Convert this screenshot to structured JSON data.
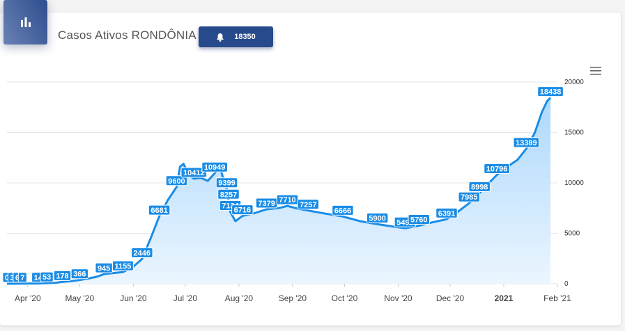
{
  "header": {
    "title": "Casos Ativos RONDÔNIA",
    "badge_value": "18350",
    "icon": "bar-chart-icon",
    "badge_icon": "bell-icon",
    "menu_icon": "hamburger-menu-icon"
  },
  "colors": {
    "line": "#1a8ce6",
    "area_top": "#a9d6fb",
    "area_bottom": "#eaf5ff",
    "label_bg": "#1a8ce6",
    "badge": "#274a8c"
  },
  "chart_data": {
    "type": "area",
    "title": "Casos Ativos RONDÔNIA",
    "xlabel": "",
    "ylabel": "",
    "x_start": "2020-03-20",
    "x_end": "2021-02-01",
    "ylim": [
      0,
      20000
    ],
    "yticks": [
      0,
      5000,
      10000,
      15000,
      20000
    ],
    "xtick_labels": [
      {
        "date": "2020-04-01",
        "label": "Apr '20",
        "bold": false
      },
      {
        "date": "2020-05-01",
        "label": "May '20",
        "bold": false
      },
      {
        "date": "2020-06-01",
        "label": "Jun '20",
        "bold": false
      },
      {
        "date": "2020-07-01",
        "label": "Jul '20",
        "bold": false
      },
      {
        "date": "2020-08-01",
        "label": "Aug '20",
        "bold": false
      },
      {
        "date": "2020-09-01",
        "label": "Sep '20",
        "bold": false
      },
      {
        "date": "2020-10-01",
        "label": "Oct '20",
        "bold": false
      },
      {
        "date": "2020-11-01",
        "label": "Nov '20",
        "bold": false
      },
      {
        "date": "2020-12-01",
        "label": "Dec '20",
        "bold": false
      },
      {
        "date": "2021-01-01",
        "label": "2021",
        "bold": true
      },
      {
        "date": "2021-02-01",
        "label": "Feb '21",
        "bold": false
      }
    ],
    "grid": true,
    "legend": "none",
    "series": [
      {
        "points": [
          [
            "2020-03-20",
            0
          ],
          [
            "2020-03-23",
            3
          ],
          [
            "2020-03-26",
            6
          ],
          [
            "2020-03-29",
            7
          ],
          [
            "2020-04-02",
            14
          ],
          [
            "2020-04-07",
            14
          ],
          [
            "2020-04-12",
            53
          ],
          [
            "2020-04-17",
            100
          ],
          [
            "2020-04-21",
            178
          ],
          [
            "2020-04-26",
            250
          ],
          [
            "2020-05-01",
            366
          ],
          [
            "2020-05-06",
            520
          ],
          [
            "2020-05-11",
            700
          ],
          [
            "2020-05-15",
            945
          ],
          [
            "2020-05-20",
            1050
          ],
          [
            "2020-05-26",
            1155
          ],
          [
            "2020-06-01",
            1700
          ],
          [
            "2020-06-06",
            2446
          ],
          [
            "2020-06-11",
            4500
          ],
          [
            "2020-06-16",
            6681
          ],
          [
            "2020-06-21",
            8300
          ],
          [
            "2020-06-26",
            9600
          ],
          [
            "2020-06-28",
            11600
          ],
          [
            "2020-06-30",
            11900
          ],
          [
            "2020-07-03",
            10800
          ],
          [
            "2020-07-06",
            10412
          ],
          [
            "2020-07-10",
            10500
          ],
          [
            "2020-07-14",
            10200
          ],
          [
            "2020-07-18",
            10949
          ],
          [
            "2020-07-21",
            11600
          ],
          [
            "2020-07-23",
            10400
          ],
          [
            "2020-07-25",
            9399
          ],
          [
            "2020-07-26",
            8257
          ],
          [
            "2020-07-27",
            7134
          ],
          [
            "2020-07-30",
            6200
          ],
          [
            "2020-08-03",
            6716
          ],
          [
            "2020-08-10",
            7000
          ],
          [
            "2020-08-17",
            7379
          ],
          [
            "2020-08-24",
            7500
          ],
          [
            "2020-08-29",
            7710
          ],
          [
            "2020-09-04",
            7450
          ],
          [
            "2020-09-10",
            7257
          ],
          [
            "2020-09-20",
            6950
          ],
          [
            "2020-09-30",
            6666
          ],
          [
            "2020-10-10",
            6200
          ],
          [
            "2020-10-20",
            5900
          ],
          [
            "2020-10-30",
            5650
          ],
          [
            "2020-11-05",
            5497
          ],
          [
            "2020-11-13",
            5760
          ],
          [
            "2020-11-21",
            6100
          ],
          [
            "2020-11-29",
            6391
          ],
          [
            "2020-12-06",
            7200
          ],
          [
            "2020-12-12",
            7985
          ],
          [
            "2020-12-18",
            8998
          ],
          [
            "2020-12-23",
            9900
          ],
          [
            "2020-12-28",
            10796
          ],
          [
            "2021-01-03",
            11600
          ],
          [
            "2021-01-09",
            12300
          ],
          [
            "2021-01-14",
            13389
          ],
          [
            "2021-01-19",
            15000
          ],
          [
            "2021-01-23",
            17000
          ],
          [
            "2021-01-26",
            18100
          ],
          [
            "2021-01-28",
            18438
          ]
        ]
      }
    ],
    "data_labels": [
      {
        "date": "2020-03-20",
        "value": 0,
        "text": "0"
      },
      {
        "date": "2020-03-23",
        "value": 3,
        "text": "3"
      },
      {
        "date": "2020-03-26",
        "value": 6,
        "text": "6"
      },
      {
        "date": "2020-03-29",
        "value": 7,
        "text": "7"
      },
      {
        "date": "2020-04-07",
        "value": 14,
        "text": "14"
      },
      {
        "date": "2020-04-12",
        "value": 53,
        "text": "53"
      },
      {
        "date": "2020-04-21",
        "value": 178,
        "text": "178"
      },
      {
        "date": "2020-05-01",
        "value": 366,
        "text": "366"
      },
      {
        "date": "2020-05-15",
        "value": 945,
        "text": "945"
      },
      {
        "date": "2020-05-26",
        "value": 1155,
        "text": "1155"
      },
      {
        "date": "2020-06-06",
        "value": 2446,
        "text": "2446"
      },
      {
        "date": "2020-06-16",
        "value": 6681,
        "text": "6681"
      },
      {
        "date": "2020-06-26",
        "value": 9600,
        "text": "9600"
      },
      {
        "date": "2020-07-06",
        "value": 10412,
        "text": "10412"
      },
      {
        "date": "2020-07-18",
        "value": 10949,
        "text": "10949"
      },
      {
        "date": "2020-07-25",
        "value": 9399,
        "text": "9399"
      },
      {
        "date": "2020-07-26",
        "value": 8257,
        "text": "8257"
      },
      {
        "date": "2020-07-27",
        "value": 7134,
        "text": "7134"
      },
      {
        "date": "2020-08-03",
        "value": 6716,
        "text": "6716"
      },
      {
        "date": "2020-08-17",
        "value": 7379,
        "text": "7379"
      },
      {
        "date": "2020-08-29",
        "value": 7710,
        "text": "7710"
      },
      {
        "date": "2020-09-10",
        "value": 7257,
        "text": "7257"
      },
      {
        "date": "2020-09-30",
        "value": 6666,
        "text": "6666"
      },
      {
        "date": "2020-10-20",
        "value": 5900,
        "text": "5900"
      },
      {
        "date": "2020-11-05",
        "value": 5497,
        "text": "5497"
      },
      {
        "date": "2020-11-13",
        "value": 5760,
        "text": "5760"
      },
      {
        "date": "2020-11-29",
        "value": 6391,
        "text": "6391"
      },
      {
        "date": "2020-12-12",
        "value": 7985,
        "text": "7985"
      },
      {
        "date": "2020-12-18",
        "value": 8998,
        "text": "8998"
      },
      {
        "date": "2020-12-28",
        "value": 10796,
        "text": "10796"
      },
      {
        "date": "2021-01-14",
        "value": 13389,
        "text": "13389"
      },
      {
        "date": "2021-01-28",
        "value": 18438,
        "text": "18438"
      }
    ]
  }
}
